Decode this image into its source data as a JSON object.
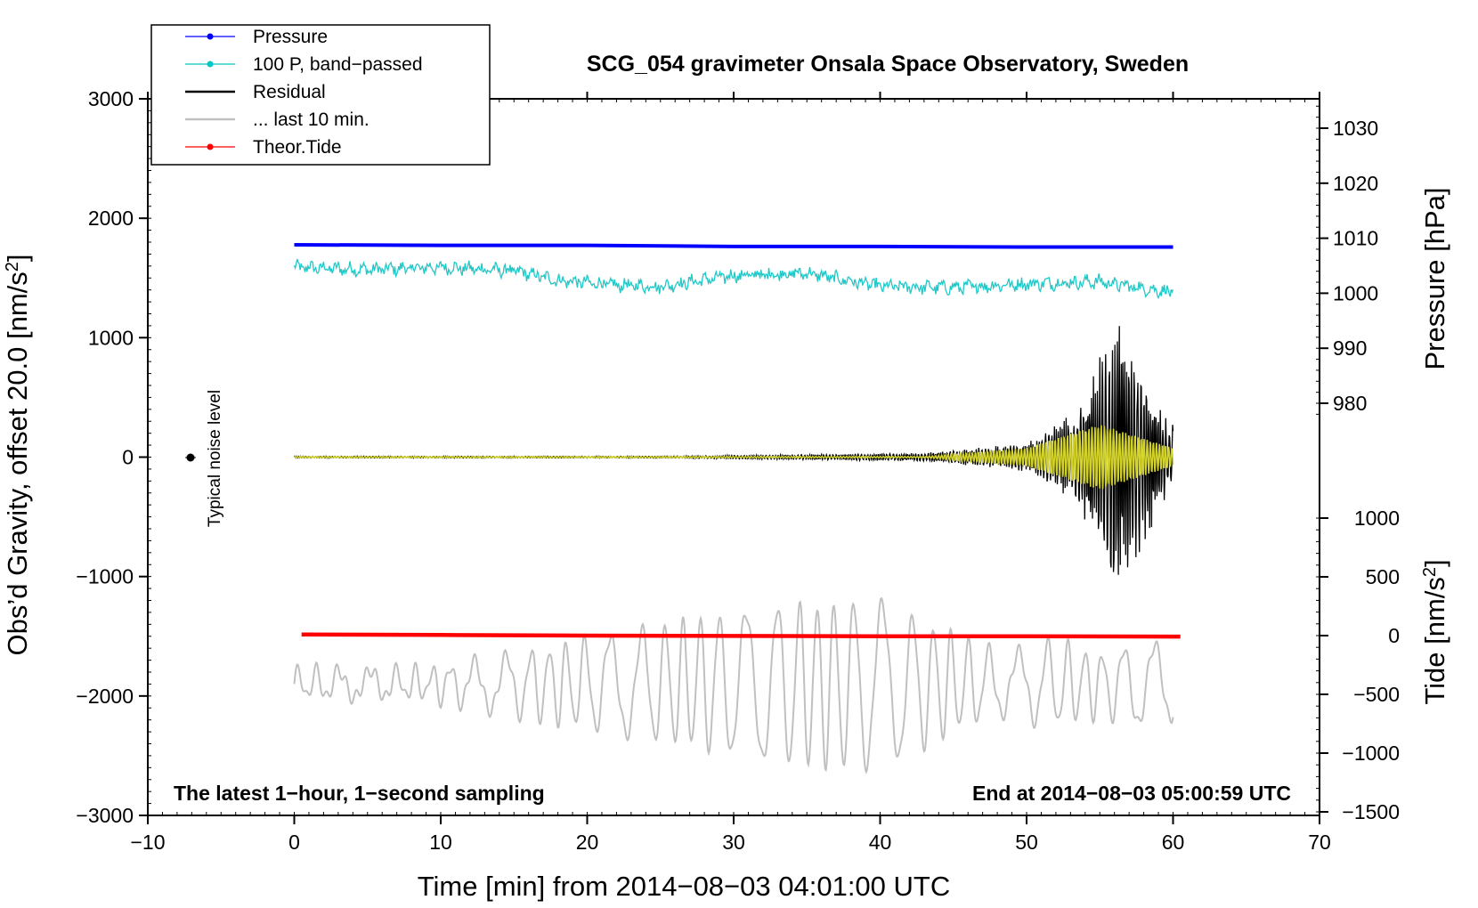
{
  "chart_data": {
    "type": "line",
    "title": "SCG_054 gravimeter Onsala Space Observatory, Sweden",
    "xlabel": "Time [min] from 2014−08−03 04:01:00 UTC",
    "ylabel_left": "Obs’d Gravity, offset 20.0 [nm/s",
    "ylabel_left_sup": "2",
    "ylabel_left_end": "]",
    "ylabel_pressure": "Pressure [hPa]",
    "ylabel_tide": "Tide [nm/s",
    "ylabel_tide_sup": "2",
    "ylabel_tide_end": "]",
    "xlim": [
      -10,
      70
    ],
    "ylim_left": [
      -3000,
      3000
    ],
    "x_ticks": [
      -10,
      0,
      10,
      20,
      30,
      40,
      50,
      60,
      70
    ],
    "x_tick_labels": [
      "−10",
      "0",
      "10",
      "20",
      "30",
      "40",
      "50",
      "60",
      "70"
    ],
    "y_left_ticks": [
      -3000,
      -2000,
      -1000,
      0,
      1000,
      2000,
      3000
    ],
    "y_left_tick_labels": [
      "−3000",
      "−2000",
      "−1000",
      "0",
      "1000",
      "2000",
      "3000"
    ],
    "pressure_ticks": [
      980,
      990,
      1000,
      1010,
      1020,
      1030
    ],
    "pressure_tick_labels": [
      "980",
      "990",
      "1000",
      "1010",
      "1020",
      "1030"
    ],
    "pressure_axis": {
      "left_value_at": 0,
      "left_zero_value": 0
    },
    "tide_ticks": [
      -1500,
      -1000,
      -500,
      0,
      500,
      1000
    ],
    "tide_tick_labels": [
      "−1500",
      "−1000",
      "−500",
      "0",
      "500",
      "1000"
    ],
    "legend": [
      {
        "label": "Pressure",
        "color": "#0000ff",
        "style": "line-dot"
      },
      {
        "label": "100 P, band−passed",
        "color": "#00c8c8",
        "style": "line-dot"
      },
      {
        "label": "Residual",
        "color": "#000000",
        "style": "line"
      },
      {
        "label": "... last 10 min.",
        "color": "#c0c0c0",
        "style": "line"
      },
      {
        "label": "Theor.Tide",
        "color": "#ff0000",
        "style": "line-dot"
      }
    ],
    "series": [
      {
        "name": "Pressure",
        "color": "#0000ff",
        "x": [
          0,
          10,
          20,
          30,
          40,
          50,
          60
        ],
        "values": [
          1008.8,
          1008.7,
          1008.7,
          1008.5,
          1008.5,
          1008.4,
          1008.4
        ],
        "axis": "pressure"
      },
      {
        "name": "100 P, band−passed",
        "color": "#20c8c8",
        "x": [
          0,
          5,
          10,
          15,
          18,
          22,
          25,
          30,
          35,
          40,
          45,
          50,
          55,
          57,
          60
        ],
        "values": [
          1590,
          1570,
          1590,
          1560,
          1480,
          1440,
          1430,
          1520,
          1540,
          1430,
          1420,
          1450,
          1470,
          1430,
          1380
        ],
        "axis": "left"
      },
      {
        "name": "Residual",
        "color": "#000000",
        "x": [
          0,
          10,
          20,
          30,
          40,
          45,
          50,
          55,
          56,
          57,
          60
        ],
        "values": [
          0,
          0,
          0,
          0,
          0,
          20,
          60,
          400,
          1300,
          800,
          300
        ],
        "axis": "left"
      },
      {
        "name": "... last 10 min.",
        "color": "#c0c0c0",
        "x": [
          0,
          10,
          20,
          30,
          34,
          37,
          40,
          50,
          60
        ],
        "values": [
          -1850,
          -1850,
          -1900,
          -2000,
          -2300,
          -2600,
          -2000,
          -1900,
          -1900
        ],
        "axis": "left"
      },
      {
        "name": "Theor.Tide",
        "color": "#ff0000",
        "x": [
          0.5,
          10,
          20,
          30,
          40,
          50,
          60.5
        ],
        "values": [
          10,
          5,
          0,
          -3,
          -5,
          -6,
          -8
        ],
        "axis": "tide"
      }
    ],
    "noise_label": "Typical noise level",
    "noise_marker": {
      "x": -7,
      "y": 0
    },
    "note_left": "The latest 1−hour, 1−second sampling",
    "note_right": "End at 2014−08−03 05:00:59 UTC"
  }
}
